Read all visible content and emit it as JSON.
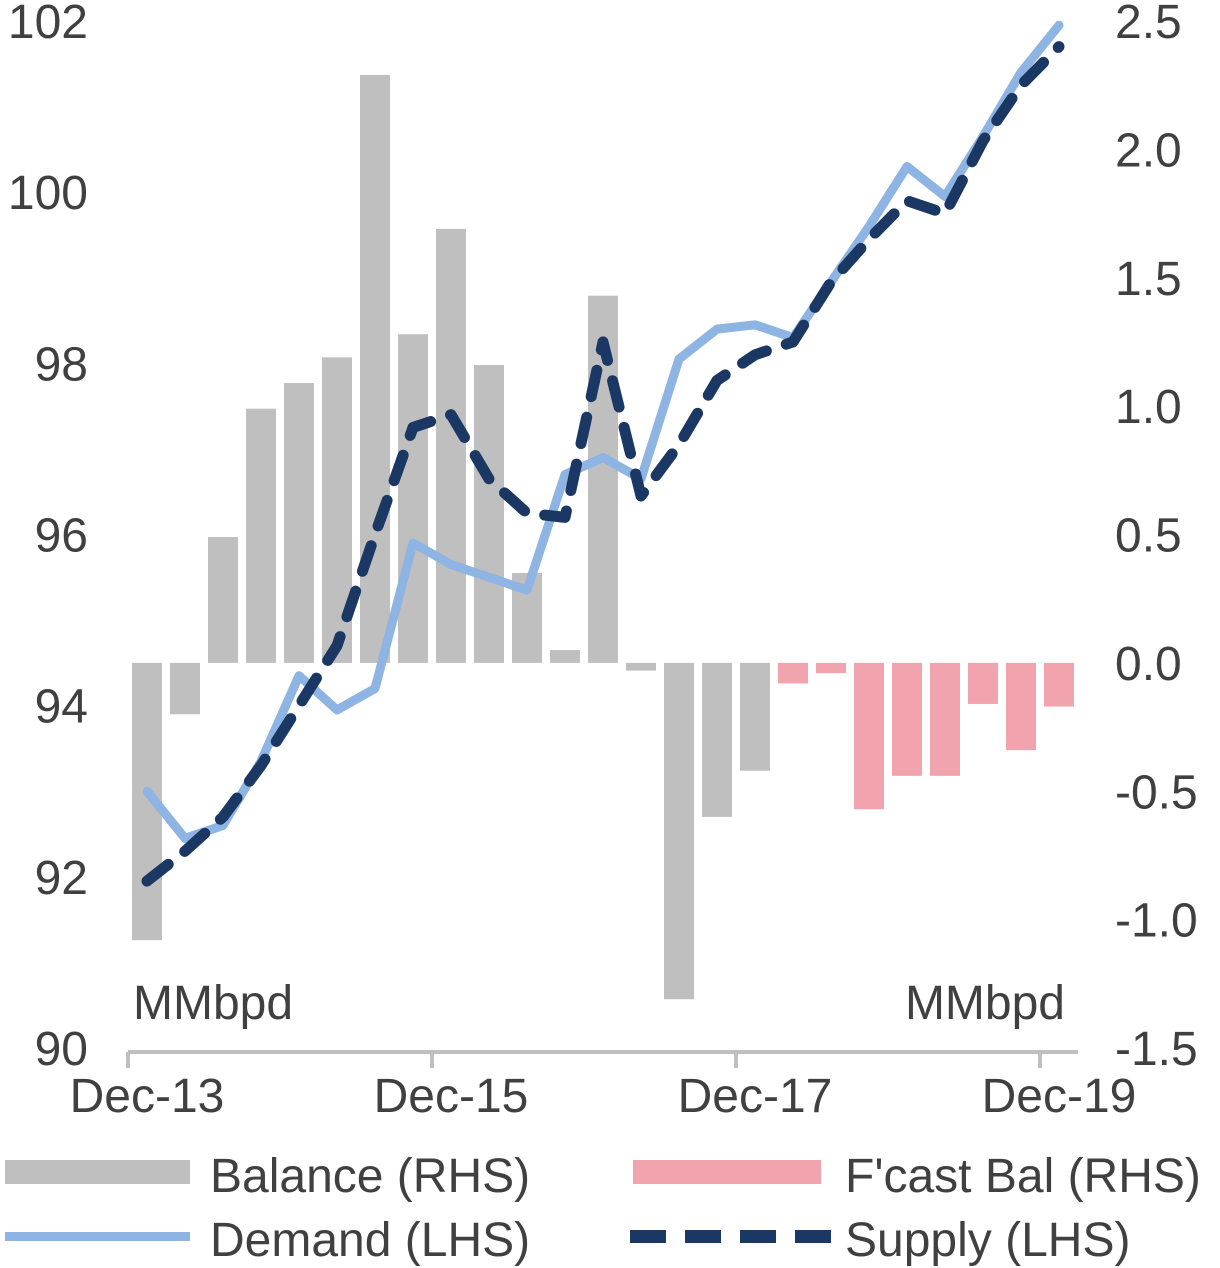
{
  "units": {
    "left_unit": "MMbpd",
    "right_unit": "MMbpd"
  },
  "colors": {
    "balance_bar": "#bfbfbf",
    "forecast_bar": "#f1a3ae",
    "demand_line": "#8db4e2",
    "supply_line": "#1b3764",
    "axis_line": "#bfbfbf",
    "text": "#404040"
  },
  "legend": {
    "balance_label": "Balance (RHS)",
    "forecast_label": "F'cast Bal (RHS)",
    "demand_label": "Demand (LHS)",
    "supply_label": "Supply (LHS)"
  },
  "chart_data": {
    "type": "combo (bar + line, dual axis)",
    "x": [
      "Dec-13",
      "Mar-14",
      "Jun-14",
      "Sep-14",
      "Dec-14",
      "Mar-15",
      "Jun-15",
      "Sep-15",
      "Dec-15",
      "Mar-16",
      "Jun-16",
      "Sep-16",
      "Dec-16",
      "Mar-17",
      "Jun-17",
      "Sep-17",
      "Dec-17",
      "Mar-18",
      "Jun-18",
      "Sep-18",
      "Dec-18",
      "Mar-19",
      "Jun-19",
      "Sep-19",
      "Dec-19"
    ],
    "x_axis_tick_labels": [
      "Dec-13",
      "Dec-15",
      "Dec-17",
      "Dec-19"
    ],
    "x_axis_tick_indices": [
      0,
      8,
      16,
      24
    ],
    "left_axis": {
      "min": 90,
      "max": 102,
      "tick_labels": [
        "102",
        "100",
        "98",
        "96",
        "94",
        "92",
        "90"
      ],
      "tick_values": [
        102,
        100,
        98,
        96,
        94,
        92,
        90
      ]
    },
    "right_axis": {
      "min": -1.5,
      "max": 2.5,
      "tick_labels": [
        "2.5",
        "2.0",
        "1.5",
        "1.0",
        "0.5",
        "0.0",
        "-0.5",
        "-1.0",
        "-1.5"
      ],
      "tick_values": [
        2.5,
        2.0,
        1.5,
        1.0,
        0.5,
        0.0,
        -0.5,
        -1.0,
        -1.5
      ]
    },
    "series": [
      {
        "name": "Balance (RHS)",
        "type": "bar",
        "axis": "right",
        "values": [
          -1.08,
          -0.2,
          0.49,
          0.99,
          1.09,
          1.19,
          2.29,
          1.28,
          1.69,
          1.16,
          0.35,
          0.05,
          1.43,
          -0.03,
          -1.31,
          -0.6,
          -0.42,
          null,
          null,
          null,
          null,
          null,
          null,
          null,
          null
        ]
      },
      {
        "name": "F'cast Bal (RHS)",
        "type": "bar",
        "axis": "right",
        "values": [
          null,
          null,
          null,
          null,
          null,
          null,
          null,
          null,
          null,
          null,
          null,
          null,
          null,
          null,
          null,
          null,
          null,
          -0.08,
          -0.04,
          -0.57,
          -0.44,
          -0.44,
          -0.16,
          -0.34,
          -0.17
        ]
      },
      {
        "name": "Demand (LHS)",
        "type": "line",
        "axis": "left",
        "values": [
          93.0,
          92.45,
          92.6,
          93.35,
          94.35,
          93.95,
          94.2,
          95.9,
          95.65,
          95.5,
          95.35,
          96.7,
          96.9,
          96.65,
          98.05,
          98.4,
          98.45,
          98.3,
          98.95,
          99.6,
          100.3,
          99.95,
          100.65,
          101.4,
          101.95
        ]
      },
      {
        "name": "Supply (LHS)",
        "type": "line",
        "axis": "left",
        "style": "dashed",
        "values": [
          91.95,
          92.3,
          92.7,
          93.3,
          94.0,
          94.7,
          96.0,
          97.25,
          97.4,
          96.65,
          96.25,
          96.2,
          98.25,
          96.45,
          97.05,
          97.8,
          98.1,
          98.25,
          98.95,
          99.45,
          99.9,
          99.75,
          100.6,
          101.25,
          101.7
        ]
      }
    ],
    "grid": "off",
    "legend_position": "bottom"
  }
}
